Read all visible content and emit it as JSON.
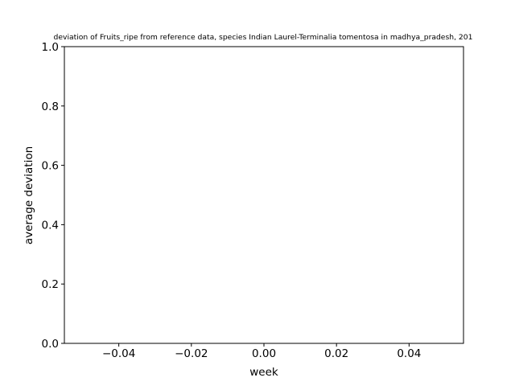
{
  "chart_data": {
    "type": "line",
    "title": "deviation of Fruits_ripe from reference data, species Indian Laurel-Terminalia tomentosa in madhya_pradesh, 201",
    "xlabel": "week",
    "ylabel": "average deviation",
    "xlim": [
      -0.055,
      0.055
    ],
    "ylim": [
      0.0,
      1.0
    ],
    "x_ticks": [
      -0.04,
      -0.02,
      0.0,
      0.02,
      0.04
    ],
    "x_tick_labels": [
      "−0.04",
      "−0.02",
      "0.00",
      "0.02",
      "0.04"
    ],
    "y_ticks": [
      0.0,
      0.2,
      0.4,
      0.6,
      0.8,
      1.0
    ],
    "y_tick_labels": [
      "0.0",
      "0.2",
      "0.4",
      "0.6",
      "0.8",
      "1.0"
    ],
    "series": [],
    "grid": false,
    "legend": "none"
  }
}
